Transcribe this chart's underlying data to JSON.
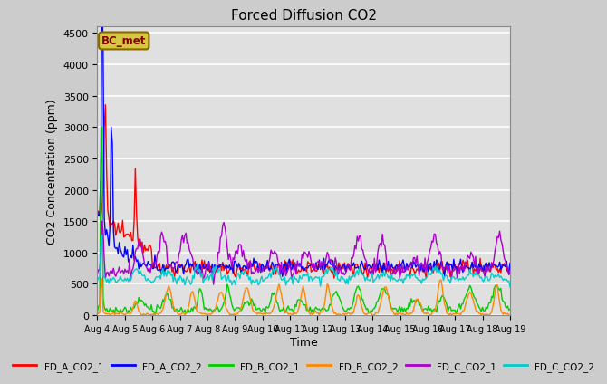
{
  "title": "Forced Diffusion CO2",
  "xlabel": "Time",
  "ylabel": "CO2 Concentration (ppm)",
  "ylim": [
    0,
    4600
  ],
  "fig_bg": "#cccccc",
  "plot_bg": "#e0e0e0",
  "annotation_text": "BC_met",
  "annotation_bg": "#d4c840",
  "annotation_fg": "#880000",
  "series_order": [
    "FD_A_CO2_1",
    "FD_A_CO2_2",
    "FD_B_CO2_1",
    "FD_B_CO2_2",
    "FD_C_CO2_1",
    "FD_C_CO2_2"
  ],
  "series_colors": {
    "FD_A_CO2_1": "#ff0000",
    "FD_A_CO2_2": "#0000ff",
    "FD_B_CO2_1": "#00cc00",
    "FD_B_CO2_2": "#ff8800",
    "FD_C_CO2_1": "#aa00cc",
    "FD_C_CO2_2": "#00cccc"
  },
  "lw": 1.0,
  "legend_ncol": 6,
  "yticks": [
    0,
    500,
    1000,
    1500,
    2000,
    2500,
    3000,
    3500,
    4000,
    4500
  ],
  "xtick_labels": [
    "Aug 4",
    "Aug 5",
    "Aug 6",
    "Aug 7",
    "Aug 8",
    "Aug 9",
    "Aug 10",
    "Aug 11",
    "Aug 12",
    "Aug 13",
    "Aug 14",
    "Aug 15",
    "Aug 16",
    "Aug 17",
    "Aug 18",
    "Aug 19"
  ]
}
